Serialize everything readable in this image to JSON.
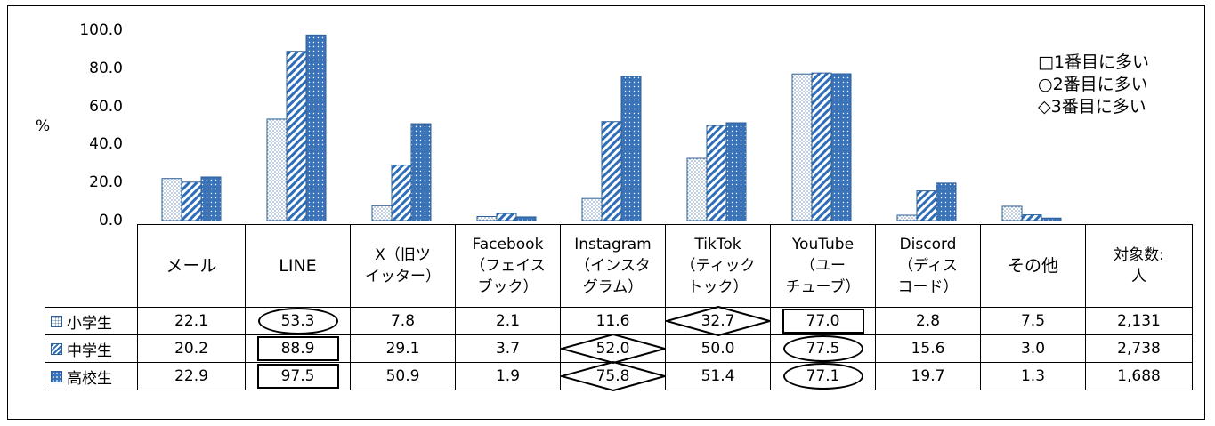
{
  "chart_data": {
    "type": "bar",
    "ylabel": "%",
    "ylim": [
      0,
      100
    ],
    "yticks": [
      "100.0",
      "80.0",
      "60.0",
      "40.0",
      "20.0",
      "0.0"
    ],
    "categories": [
      "メール",
      "LINE",
      "X（旧ツ\nイッター）",
      "Facebook\n（フェイス\nブック）",
      "Instagram\n（インスタ\nグラム）",
      "TikTok\n（ティック\nトック）",
      "YouTube\n（ユー\nチューブ）",
      "Discord\n（ディス\nコード）",
      "その他"
    ],
    "extra_column": "対象数:\n人",
    "series": [
      {
        "name": "小学生",
        "values": [
          22.1,
          53.3,
          7.8,
          2.1,
          11.6,
          32.7,
          77.0,
          2.8,
          7.5
        ],
        "labels": [
          "22.1",
          "53.3",
          "7.8",
          "2.1",
          "11.6",
          "32.7",
          "77.0",
          "2.8",
          "7.5"
        ],
        "count": "2,131",
        "pattern": "dots"
      },
      {
        "name": "中学生",
        "values": [
          20.2,
          88.9,
          29.1,
          3.7,
          52.0,
          50.0,
          77.5,
          15.6,
          3.0
        ],
        "labels": [
          "20.2",
          "88.9",
          "29.1",
          "3.7",
          "52.0",
          "50.0",
          "77.5",
          "15.6",
          "3.0"
        ],
        "count": "2,738",
        "pattern": "hatch"
      },
      {
        "name": "高校生",
        "values": [
          22.9,
          97.5,
          50.9,
          1.9,
          75.8,
          51.4,
          77.1,
          19.7,
          1.3
        ],
        "labels": [
          "22.9",
          "97.5",
          "50.9",
          "1.9",
          "75.8",
          "51.4",
          "77.1",
          "19.7",
          "1.3"
        ],
        "count": "1,688",
        "pattern": "solid"
      }
    ],
    "legend": [
      "□1番目に多い",
      "○2番目に多い",
      "◇3番目に多い"
    ],
    "legend_position": "top-right",
    "rank_marks": [
      {
        "series": 0,
        "category": 1,
        "shape": "oval"
      },
      {
        "series": 0,
        "category": 5,
        "shape": "diamond"
      },
      {
        "series": 0,
        "category": 6,
        "shape": "rect"
      },
      {
        "series": 1,
        "category": 1,
        "shape": "rect"
      },
      {
        "series": 1,
        "category": 4,
        "shape": "diamond"
      },
      {
        "series": 1,
        "category": 6,
        "shape": "oval"
      },
      {
        "series": 2,
        "category": 1,
        "shape": "rect"
      },
      {
        "series": 2,
        "category": 4,
        "shape": "diamond"
      },
      {
        "series": 2,
        "category": 6,
        "shape": "oval"
      }
    ],
    "colors": {
      "border": "#2e5f96",
      "dots": "#6f8fb3",
      "hatch": "#2e6eb8",
      "solid": "#3a73b8"
    }
  }
}
